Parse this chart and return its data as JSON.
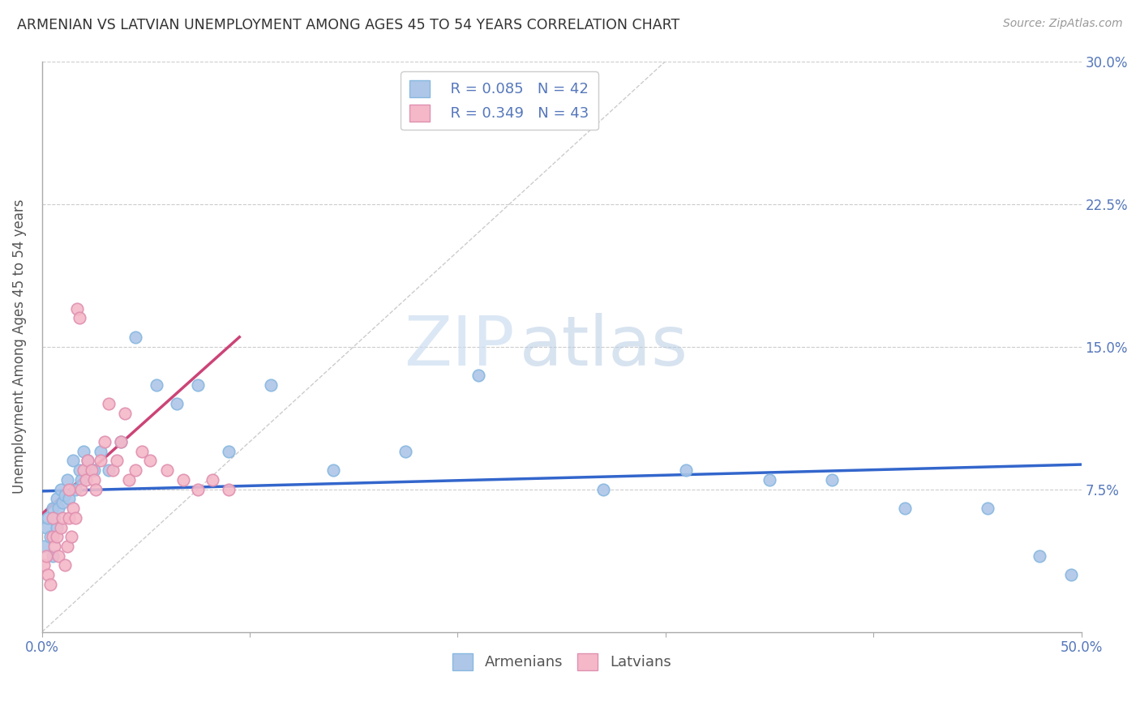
{
  "title": "ARMENIAN VS LATVIAN UNEMPLOYMENT AMONG AGES 45 TO 54 YEARS CORRELATION CHART",
  "source": "Source: ZipAtlas.com",
  "ylabel": "Unemployment Among Ages 45 to 54 years",
  "xlim": [
    0.0,
    0.5
  ],
  "ylim": [
    0.0,
    0.3
  ],
  "xticks": [
    0.0,
    0.1,
    0.2,
    0.3,
    0.4,
    0.5
  ],
  "yticks": [
    0.0,
    0.075,
    0.15,
    0.225,
    0.3
  ],
  "ytick_labels": [
    "",
    "7.5%",
    "15.0%",
    "22.5%",
    "30.0%"
  ],
  "xtick_labels": [
    "0.0%",
    "",
    "",
    "",
    "",
    "50.0%"
  ],
  "legend_armenians": {
    "R": 0.085,
    "N": 42,
    "color": "#aec6e8"
  },
  "legend_latvians": {
    "R": 0.349,
    "N": 43,
    "color": "#f4b8c8"
  },
  "armenians_x": [
    0.001,
    0.002,
    0.003,
    0.004,
    0.005,
    0.005,
    0.006,
    0.007,
    0.007,
    0.008,
    0.009,
    0.01,
    0.011,
    0.012,
    0.013,
    0.015,
    0.016,
    0.018,
    0.019,
    0.02,
    0.022,
    0.025,
    0.028,
    0.032,
    0.038,
    0.045,
    0.055,
    0.065,
    0.075,
    0.09,
    0.11,
    0.14,
    0.175,
    0.21,
    0.27,
    0.31,
    0.35,
    0.38,
    0.415,
    0.455,
    0.48,
    0.495
  ],
  "armenians_y": [
    0.045,
    0.055,
    0.06,
    0.05,
    0.065,
    0.04,
    0.06,
    0.055,
    0.07,
    0.065,
    0.075,
    0.068,
    0.072,
    0.08,
    0.07,
    0.09,
    0.075,
    0.085,
    0.08,
    0.095,
    0.09,
    0.085,
    0.095,
    0.085,
    0.1,
    0.155,
    0.13,
    0.12,
    0.13,
    0.095,
    0.13,
    0.085,
    0.095,
    0.135,
    0.075,
    0.085,
    0.08,
    0.08,
    0.065,
    0.065,
    0.04,
    0.03
  ],
  "latvians_x": [
    0.001,
    0.002,
    0.003,
    0.004,
    0.005,
    0.005,
    0.006,
    0.007,
    0.008,
    0.009,
    0.01,
    0.011,
    0.012,
    0.013,
    0.013,
    0.014,
    0.015,
    0.016,
    0.017,
    0.018,
    0.019,
    0.02,
    0.021,
    0.022,
    0.024,
    0.025,
    0.026,
    0.028,
    0.03,
    0.032,
    0.034,
    0.036,
    0.038,
    0.04,
    0.042,
    0.045,
    0.048,
    0.052,
    0.06,
    0.068,
    0.075,
    0.082,
    0.09
  ],
  "latvians_y": [
    0.035,
    0.04,
    0.03,
    0.025,
    0.05,
    0.06,
    0.045,
    0.05,
    0.04,
    0.055,
    0.06,
    0.035,
    0.045,
    0.06,
    0.075,
    0.05,
    0.065,
    0.06,
    0.17,
    0.165,
    0.075,
    0.085,
    0.08,
    0.09,
    0.085,
    0.08,
    0.075,
    0.09,
    0.1,
    0.12,
    0.085,
    0.09,
    0.1,
    0.115,
    0.08,
    0.085,
    0.095,
    0.09,
    0.085,
    0.08,
    0.075,
    0.08,
    0.075
  ],
  "diagonal_line_x": [
    0.0,
    0.3
  ],
  "diagonal_line_y": [
    0.0,
    0.3
  ],
  "armenian_trend_x": [
    0.0,
    0.5
  ],
  "armenian_trend_y": [
    0.074,
    0.088
  ],
  "latvian_trend_x": [
    0.0,
    0.095
  ],
  "latvian_trend_y": [
    0.062,
    0.155
  ],
  "watermark_zip": "ZIP",
  "watermark_atlas": "atlas",
  "background_color": "#ffffff",
  "grid_color": "#cccccc",
  "title_color": "#333333",
  "axis_label_color": "#5577bb",
  "ylabel_color": "#555555",
  "marker_size": 110,
  "armenian_line_color": "#3366cc",
  "latvian_line_color": "#cc4477",
  "diagonal_color": "#cccccc",
  "legend_edge_color": "#cccccc"
}
